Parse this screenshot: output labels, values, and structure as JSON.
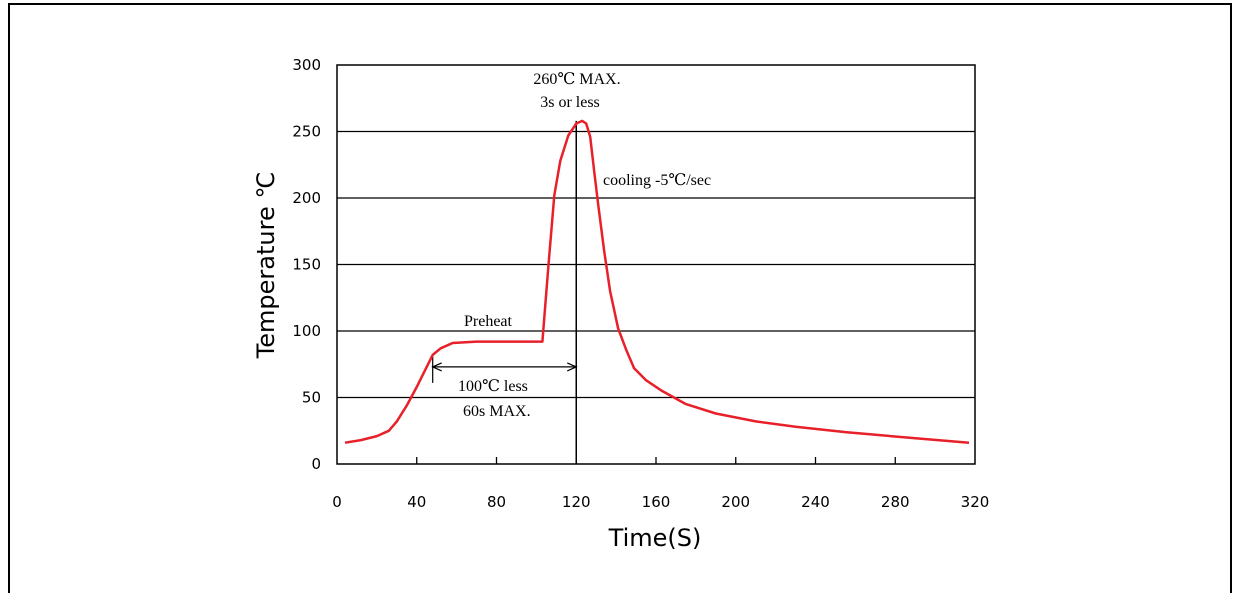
{
  "chart_data": {
    "type": "line",
    "title": "",
    "xlabel": "Time(S)",
    "ylabel": "Temperature ℃",
    "xlim": [
      0,
      320
    ],
    "ylim": [
      0,
      300
    ],
    "xticks": [
      0,
      40,
      80,
      120,
      160,
      200,
      240,
      280,
      320
    ],
    "yticks": [
      0,
      50,
      100,
      150,
      200,
      250,
      300
    ],
    "grid": "horizontal",
    "series": [
      {
        "color": "#e8202a",
        "points": [
          [
            4,
            16
          ],
          [
            12,
            18
          ],
          [
            20,
            21
          ],
          [
            26,
            25
          ],
          [
            30,
            32
          ],
          [
            35,
            44
          ],
          [
            40,
            58
          ],
          [
            44,
            70
          ],
          [
            48,
            82
          ],
          [
            52,
            87
          ],
          [
            58,
            91
          ],
          [
            70,
            92
          ],
          [
            90,
            92
          ],
          [
            103,
            92
          ],
          [
            106,
            148
          ],
          [
            109,
            202
          ],
          [
            112,
            228
          ],
          [
            116,
            247
          ],
          [
            120,
            256
          ],
          [
            123,
            258
          ],
          [
            125,
            256
          ],
          [
            127,
            246
          ],
          [
            129,
            220
          ],
          [
            131,
            195
          ],
          [
            134,
            160
          ],
          [
            137,
            130
          ],
          [
            141,
            102
          ],
          [
            145,
            86
          ],
          [
            149,
            72
          ],
          [
            155,
            63
          ],
          [
            163,
            55
          ],
          [
            175,
            45
          ],
          [
            190,
            38
          ],
          [
            210,
            32
          ],
          [
            230,
            28
          ],
          [
            255,
            24
          ],
          [
            285,
            20
          ],
          [
            317,
            16
          ]
        ]
      }
    ],
    "annotations": {
      "peak": [
        "260℃ MAX.",
        "3s or less"
      ],
      "cooling": "cooling -5℃/sec",
      "preheat": "Preheat",
      "span": [
        "100℃ less",
        "60s MAX."
      ]
    }
  }
}
